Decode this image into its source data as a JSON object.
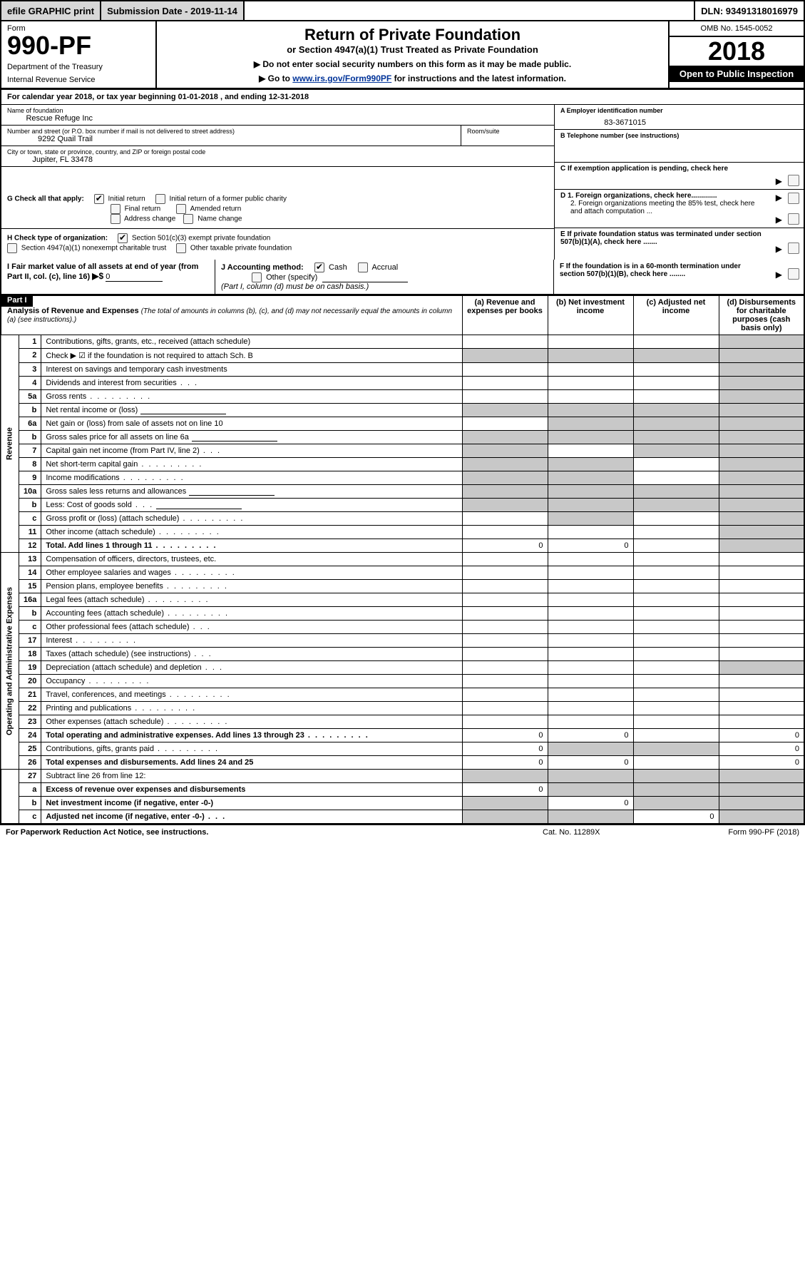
{
  "topbar": {
    "efile": "efile GRAPHIC print",
    "subdate_label": "Submission Date - 2019-11-14",
    "dln": "DLN: 93491318016979"
  },
  "header": {
    "form_word": "Form",
    "form_no": "990-PF",
    "dept1": "Department of the Treasury",
    "dept2": "Internal Revenue Service",
    "title": "Return of Private Foundation",
    "subtitle": "or Section 4947(a)(1) Trust Treated as Private Foundation",
    "instruct1": "▶ Do not enter social security numbers on this form as it may be made public.",
    "instruct2_pre": "▶ Go to ",
    "instruct2_link": "www.irs.gov/Form990PF",
    "instruct2_post": " for instructions and the latest information.",
    "omb": "OMB No. 1545-0052",
    "year": "2018",
    "open": "Open to Public Inspection"
  },
  "calyear": "For calendar year 2018, or tax year beginning 01-01-2018            , and ending 12-31-2018",
  "info": {
    "name_label": "Name of foundation",
    "name": "Rescue Refuge Inc",
    "ein_label": "A Employer identification number",
    "ein": "83-3671015",
    "addr_label": "Number and street (or P.O. box number if mail is not delivered to street address)",
    "room_label": "Room/suite",
    "addr": "9292 Quail Trail",
    "tel_label": "B Telephone number (see instructions)",
    "city_label": "City or town, state or province, country, and ZIP or foreign postal code",
    "city": "Jupiter, FL  33478",
    "c": "C If exemption application is pending, check here",
    "g_label": "G Check all that apply:",
    "g_initial": "Initial return",
    "g_initial_former": "Initial return of a former public charity",
    "g_final": "Final return",
    "g_amended": "Amended return",
    "g_address": "Address change",
    "g_name": "Name change",
    "d1": "D 1. Foreign organizations, check here.............",
    "d2": "2. Foreign organizations meeting the 85% test, check here and attach computation ...",
    "h_label": "H Check type of organization:",
    "h_501c3": "Section 501(c)(3) exempt private foundation",
    "h_4947": "Section 4947(a)(1) nonexempt charitable trust",
    "h_other": "Other taxable private foundation",
    "e": "E  If private foundation status was terminated under section 507(b)(1)(A), check here .......",
    "i_label": "I Fair market value of all assets at end of year (from Part II, col. (c), line 16)",
    "i_arrow": "▶$",
    "i_val": "0",
    "j_label": "J Accounting method:",
    "j_cash": "Cash",
    "j_accrual": "Accrual",
    "j_other": "Other (specify)",
    "j_note": "(Part I, column (d) must be on cash basis.)",
    "f": "F  If the foundation is in a 60-month termination under section 507(b)(1)(B), check here ........"
  },
  "part1": {
    "tab": "Part I",
    "title": "Analysis of Revenue and Expenses",
    "title_note": "(The total of amounts in columns (b), (c), and (d) may not necessarily equal the amounts in column (a) (see instructions).)",
    "col_a": "(a) Revenue and expenses per books",
    "col_b": "(b) Net investment income",
    "col_c": "(c) Adjusted net income",
    "col_d": "(d) Disbursements for charitable purposes (cash basis only)",
    "side_revenue": "Revenue",
    "side_expenses": "Operating and Administrative Expenses",
    "rows": [
      {
        "n": "1",
        "t": "Contributions, gifts, grants, etc., received (attach schedule)",
        "shade": "d"
      },
      {
        "n": "2",
        "t": "Check ▶ ☑ if the foundation is not required to attach Sch. B",
        "shade": "abcd",
        "dots": false
      },
      {
        "n": "3",
        "t": "Interest on savings and temporary cash investments",
        "shade": "d"
      },
      {
        "n": "4",
        "t": "Dividends and interest from securities",
        "dots": "3",
        "shade": "d"
      },
      {
        "n": "5a",
        "t": "Gross rents",
        "dots": true,
        "shade": "d"
      },
      {
        "n": "b",
        "t": "Net rental income or (loss)",
        "inner": true,
        "shade": "abcd"
      },
      {
        "n": "6a",
        "t": "Net gain or (loss) from sale of assets not on line 10",
        "shade": "bcd"
      },
      {
        "n": "b",
        "t": "Gross sales price for all assets on line 6a",
        "inner": true,
        "shade": "abcd"
      },
      {
        "n": "7",
        "t": "Capital gain net income (from Part IV, line 2)",
        "dots": "3",
        "shade": "acd"
      },
      {
        "n": "8",
        "t": "Net short-term capital gain",
        "dots": true,
        "shade": "abd"
      },
      {
        "n": "9",
        "t": "Income modifications",
        "dots": true,
        "shade": "abd"
      },
      {
        "n": "10a",
        "t": "Gross sales less returns and allowances",
        "inner": true,
        "shade": "abcd"
      },
      {
        "n": "b",
        "t": "Less: Cost of goods sold",
        "dots": "3",
        "inner": true,
        "shade": "abcd"
      },
      {
        "n": "c",
        "t": "Gross profit or (loss) (attach schedule)",
        "dots": true,
        "shade": "bd"
      },
      {
        "n": "11",
        "t": "Other income (attach schedule)",
        "dots": true,
        "shade": "d"
      },
      {
        "n": "12",
        "t": "Total. Add lines 1 through 11",
        "dots": true,
        "bold": true,
        "a": "0",
        "b": "0",
        "shade": "d"
      }
    ],
    "exp_rows": [
      {
        "n": "13",
        "t": "Compensation of officers, directors, trustees, etc."
      },
      {
        "n": "14",
        "t": "Other employee salaries and wages",
        "dots": true
      },
      {
        "n": "15",
        "t": "Pension plans, employee benefits",
        "dots": true
      },
      {
        "n": "16a",
        "t": "Legal fees (attach schedule)",
        "dots": true
      },
      {
        "n": "b",
        "t": "Accounting fees (attach schedule)",
        "dots": true
      },
      {
        "n": "c",
        "t": "Other professional fees (attach schedule)",
        "dots": "3"
      },
      {
        "n": "17",
        "t": "Interest",
        "dots": true
      },
      {
        "n": "18",
        "t": "Taxes (attach schedule) (see instructions)",
        "dots": "3"
      },
      {
        "n": "19",
        "t": "Depreciation (attach schedule) and depletion",
        "dots": "3",
        "shade": "d"
      },
      {
        "n": "20",
        "t": "Occupancy",
        "dots": true
      },
      {
        "n": "21",
        "t": "Travel, conferences, and meetings",
        "dots": true
      },
      {
        "n": "22",
        "t": "Printing and publications",
        "dots": true
      },
      {
        "n": "23",
        "t": "Other expenses (attach schedule)",
        "dots": true
      },
      {
        "n": "24",
        "t": "Total operating and administrative expenses. Add lines 13 through 23",
        "dots": true,
        "bold": true,
        "a": "0",
        "b": "0",
        "d": "0"
      },
      {
        "n": "25",
        "t": "Contributions, gifts, grants paid",
        "dots": true,
        "a": "0",
        "d": "0",
        "shade": "bc"
      },
      {
        "n": "26",
        "t": "Total expenses and disbursements. Add lines 24 and 25",
        "bold": true,
        "a": "0",
        "b": "0",
        "d": "0"
      }
    ],
    "final_rows": [
      {
        "n": "27",
        "t": "Subtract line 26 from line 12:",
        "shade": "abcd"
      },
      {
        "n": "a",
        "t": "Excess of revenue over expenses and disbursements",
        "bold": true,
        "a": "0",
        "shade": "bcd"
      },
      {
        "n": "b",
        "t": "Net investment income (if negative, enter -0-)",
        "bold": true,
        "b": "0",
        "shade": "acd"
      },
      {
        "n": "c",
        "t": "Adjusted net income (if negative, enter -0-)",
        "bold": true,
        "dots": "3",
        "c": "0",
        "shade": "abd"
      }
    ]
  },
  "footer": {
    "left": "For Paperwork Reduction Act Notice, see instructions.",
    "cat": "Cat. No. 11289X",
    "form": "Form 990-PF (2018)"
  }
}
